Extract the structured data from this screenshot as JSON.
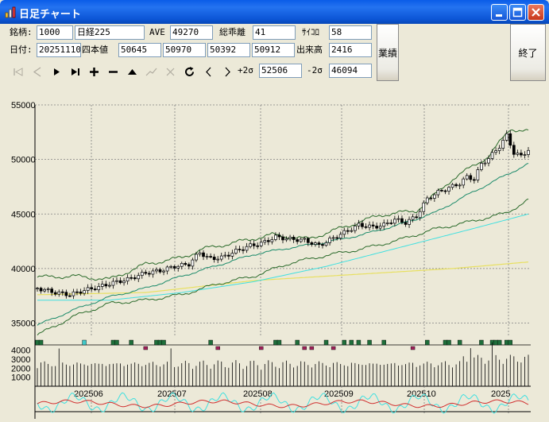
{
  "window": {
    "title": "日足チャート"
  },
  "form": {
    "code_label": "銘柄:",
    "code_value": "1000",
    "name_value": "日経225",
    "ave_label": "AVE",
    "ave_value": "49270",
    "deviation_label": "総乖離",
    "deviation_value": "41",
    "psych_label": "ｻｲｺﾛ",
    "psych_value": "58",
    "date_label": "日付:",
    "date_value": "20251110",
    "ohlc_label": "四本値",
    "open": "50645",
    "high": "50970",
    "low": "50392",
    "close": "50912",
    "volume_label": "出来高",
    "volume_value": "2416",
    "plus2sigma_label": "+2σ",
    "plus2sigma_value": "52506",
    "minus2sigma_label": "-2σ",
    "minus2sigma_value": "46094",
    "earnings_button": "業績",
    "exit_button": "終了"
  },
  "toolbar": {
    "buttons": [
      {
        "name": "first",
        "icon": "skip-start-icon",
        "enabled": false
      },
      {
        "name": "prev",
        "icon": "step-back-icon",
        "enabled": false
      },
      {
        "name": "play",
        "icon": "play-icon",
        "enabled": true
      },
      {
        "name": "last",
        "icon": "skip-end-icon",
        "enabled": true
      },
      {
        "name": "zoom-in",
        "icon": "plus-icon",
        "enabled": true
      },
      {
        "name": "zoom-out",
        "icon": "minus-icon",
        "enabled": true
      },
      {
        "name": "up",
        "icon": "triangle-up-icon",
        "enabled": true
      },
      {
        "name": "trend",
        "icon": "trendline-icon",
        "enabled": false
      },
      {
        "name": "delete",
        "icon": "cross-icon",
        "enabled": false
      },
      {
        "name": "refresh",
        "icon": "refresh-icon",
        "enabled": true
      },
      {
        "name": "scroll-left",
        "icon": "chevron-left-icon",
        "enabled": true
      },
      {
        "name": "scroll-right",
        "icon": "chevron-right-icon",
        "enabled": true
      }
    ]
  },
  "colors": {
    "ma_short": "#000000",
    "ma_mid": "#1a8a6a",
    "ma_long": "#2a6a2a",
    "ma_xlong": "#e8e060",
    "bollinger": "#40e0e0",
    "psych_line": "#d03030",
    "rsi_line": "#40e0e0",
    "grid": "#808080",
    "marker_green": "#1e6e3a",
    "marker_red": "#a0205a",
    "marker_cyan": "#40c8c8"
  },
  "chart_data": {
    "type": "candlestick",
    "price_axis": {
      "ticks": [
        "55000",
        "50000",
        "45000",
        "40000",
        "35000"
      ],
      "min": 33800,
      "max": 55000
    },
    "volume_axis": {
      "ticks": [
        "4000",
        "3000",
        "2000",
        "1000"
      ],
      "max": 4400
    },
    "months": [
      "202506",
      "202507",
      "202508",
      "202509",
      "202510",
      "2025"
    ],
    "grid": true,
    "close_path_anchors": [
      [
        0,
        38200
      ],
      [
        10,
        37800
      ],
      [
        18,
        37600
      ],
      [
        26,
        38000
      ],
      [
        34,
        38300
      ],
      [
        42,
        38700
      ],
      [
        50,
        39000
      ],
      [
        60,
        39600
      ],
      [
        68,
        39800
      ],
      [
        76,
        40200
      ],
      [
        84,
        40400
      ],
      [
        90,
        41500
      ],
      [
        95,
        40900
      ],
      [
        102,
        41000
      ],
      [
        110,
        41600
      ],
      [
        118,
        42100
      ],
      [
        124,
        42300
      ],
      [
        132,
        42900
      ],
      [
        140,
        42700
      ],
      [
        148,
        42600
      ],
      [
        156,
        42100
      ],
      [
        164,
        42800
      ],
      [
        170,
        43300
      ],
      [
        178,
        44000
      ],
      [
        186,
        43800
      ],
      [
        192,
        44000
      ],
      [
        198,
        44500
      ],
      [
        204,
        44200
      ],
      [
        210,
        44800
      ],
      [
        216,
        46400
      ],
      [
        222,
        47000
      ],
      [
        228,
        47400
      ],
      [
        234,
        47800
      ],
      [
        238,
        48400
      ],
      [
        242,
        48200
      ],
      [
        246,
        49600
      ],
      [
        250,
        50100
      ],
      [
        256,
        51200
      ],
      [
        260,
        52200
      ],
      [
        264,
        50600
      ],
      [
        268,
        50300
      ],
      [
        272,
        50900
      ]
    ],
    "upper_band_anchors": [
      [
        0,
        39200
      ],
      [
        20,
        39300
      ],
      [
        40,
        39000
      ],
      [
        60,
        40400
      ],
      [
        80,
        41000
      ],
      [
        92,
        41800
      ],
      [
        110,
        42400
      ],
      [
        130,
        43100
      ],
      [
        150,
        42700
      ],
      [
        170,
        43800
      ],
      [
        190,
        44900
      ],
      [
        210,
        45300
      ],
      [
        230,
        48200
      ],
      [
        250,
        50300
      ],
      [
        262,
        52800
      ],
      [
        272,
        52600
      ]
    ],
    "ma_mid_anchors": [
      [
        0,
        34800
      ],
      [
        20,
        36200
      ],
      [
        40,
        37400
      ],
      [
        60,
        38200
      ],
      [
        80,
        39300
      ],
      [
        100,
        40300
      ],
      [
        120,
        41300
      ],
      [
        140,
        41900
      ],
      [
        160,
        42400
      ],
      [
        180,
        43100
      ],
      [
        200,
        44000
      ],
      [
        220,
        45100
      ],
      [
        240,
        46900
      ],
      [
        260,
        48600
      ],
      [
        272,
        49600
      ]
    ],
    "ma_long_anchors": [
      [
        0,
        33900
      ],
      [
        20,
        35600
      ],
      [
        40,
        36800
      ],
      [
        60,
        37100
      ],
      [
        80,
        37600
      ],
      [
        100,
        38600
      ],
      [
        120,
        39300
      ],
      [
        140,
        40500
      ],
      [
        160,
        41200
      ],
      [
        180,
        41800
      ],
      [
        200,
        42600
      ],
      [
        220,
        43600
      ],
      [
        240,
        44300
      ],
      [
        260,
        45100
      ],
      [
        272,
        46300
      ]
    ],
    "bb_line_anchors": [
      [
        0,
        37100
      ],
      [
        40,
        37100
      ],
      [
        80,
        37800
      ],
      [
        120,
        38800
      ],
      [
        160,
        40200
      ],
      [
        200,
        41900
      ],
      [
        240,
        43600
      ],
      [
        272,
        45000
      ]
    ],
    "ma_xlong_anchors": [
      [
        0,
        37600
      ],
      [
        60,
        37800
      ],
      [
        120,
        38900
      ],
      [
        180,
        39500
      ],
      [
        230,
        40000
      ],
      [
        272,
        40600
      ]
    ],
    "markers": [
      {
        "i": 0,
        "c": "green"
      },
      {
        "i": 2,
        "c": "green"
      },
      {
        "i": 26,
        "c": "cyan"
      },
      {
        "i": 42,
        "c": "green"
      },
      {
        "i": 44,
        "c": "green"
      },
      {
        "i": 52,
        "c": "green"
      },
      {
        "i": 60,
        "c": "red"
      },
      {
        "i": 66,
        "c": "green"
      },
      {
        "i": 68,
        "c": "green"
      },
      {
        "i": 70,
        "c": "green"
      },
      {
        "i": 96,
        "c": "green"
      },
      {
        "i": 100,
        "c": "red"
      },
      {
        "i": 124,
        "c": "red"
      },
      {
        "i": 132,
        "c": "green"
      },
      {
        "i": 134,
        "c": "green"
      },
      {
        "i": 144,
        "c": "green"
      },
      {
        "i": 148,
        "c": "red"
      },
      {
        "i": 152,
        "c": "red"
      },
      {
        "i": 160,
        "c": "green"
      },
      {
        "i": 164,
        "c": "red"
      },
      {
        "i": 170,
        "c": "green"
      },
      {
        "i": 174,
        "c": "green"
      },
      {
        "i": 178,
        "c": "green"
      },
      {
        "i": 184,
        "c": "green"
      },
      {
        "i": 192,
        "c": "green"
      },
      {
        "i": 208,
        "c": "red"
      },
      {
        "i": 216,
        "c": "green"
      },
      {
        "i": 226,
        "c": "green"
      },
      {
        "i": 228,
        "c": "green"
      },
      {
        "i": 234,
        "c": "green"
      },
      {
        "i": 246,
        "c": "green"
      },
      {
        "i": 252,
        "c": "green"
      },
      {
        "i": 254,
        "c": "green"
      },
      {
        "i": 256,
        "c": "green"
      },
      {
        "i": 260,
        "c": "green"
      },
      {
        "i": 262,
        "c": "green"
      }
    ]
  }
}
